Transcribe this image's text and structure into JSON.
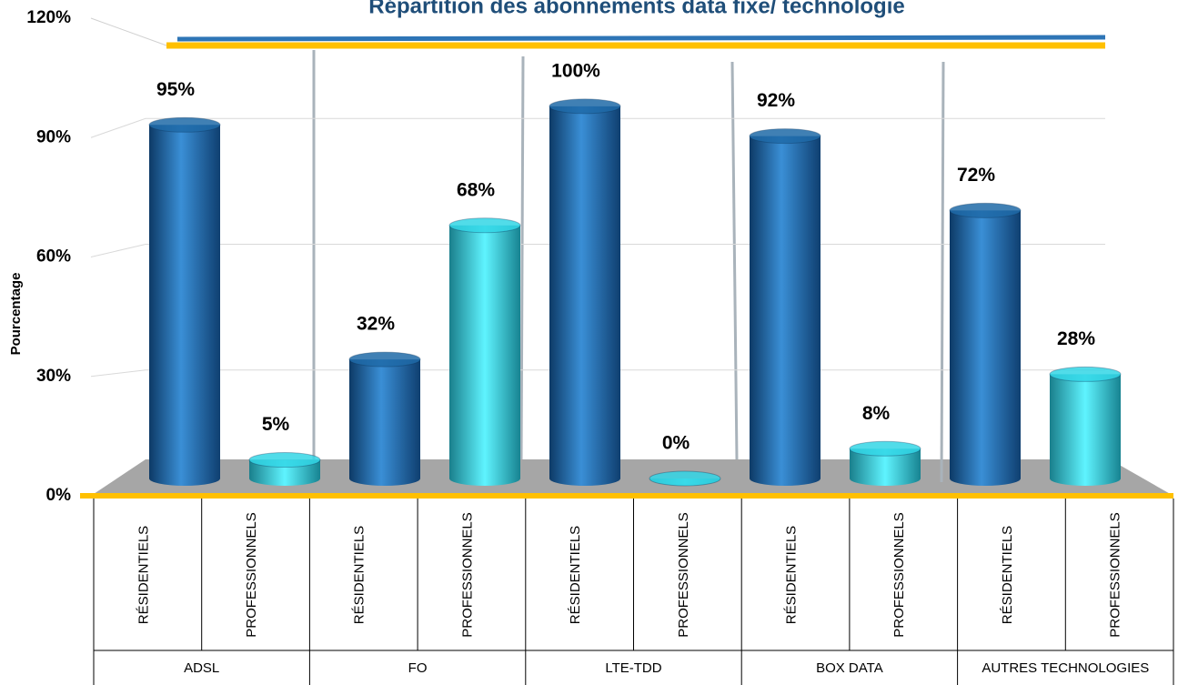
{
  "chart_data": {
    "type": "bar",
    "title": "Répartition des abonnements data fixe/ technologie",
    "y_label": "Pourcentage",
    "groups": [
      "ADSL",
      "FO",
      "LTE-TDD",
      "BOX DATA",
      "AUTRES TECHNOLOGIES"
    ],
    "categories": [
      "RÉSIDENTIELS",
      "PROFESSIONNELS",
      "RÉSIDENTIELS",
      "PROFESSIONNELS",
      "RÉSIDENTIELS",
      "PROFESSIONNELS",
      "RÉSIDENTIELS",
      "PROFESSIONNELS",
      "RÉSIDENTIELS",
      "PROFESSIONNELS"
    ],
    "values": [
      95,
      5,
      32,
      68,
      100,
      0,
      92,
      8,
      72,
      28
    ],
    "value_labels": [
      "95%",
      "5%",
      "32%",
      "68%",
      "100%",
      "0%",
      "92%",
      "8%",
      "72%",
      "28%"
    ],
    "colors": [
      "#1f6aa8",
      "#33d6e6",
      "#1f6aa8",
      "#33d6e6",
      "#1f6aa8",
      "#33d6e6",
      "#1f6aa8",
      "#33d6e6",
      "#1f6aa8",
      "#33d6e6"
    ],
    "ylim": [
      0,
      120
    ],
    "yticks": [
      {
        "value": 0,
        "label": "0%"
      },
      {
        "value": 30,
        "label": "30%"
      },
      {
        "value": 60,
        "label": "60%"
      },
      {
        "value": 90,
        "label": "90%"
      },
      {
        "value": 120,
        "label": "120%"
      }
    ],
    "grid": true
  }
}
